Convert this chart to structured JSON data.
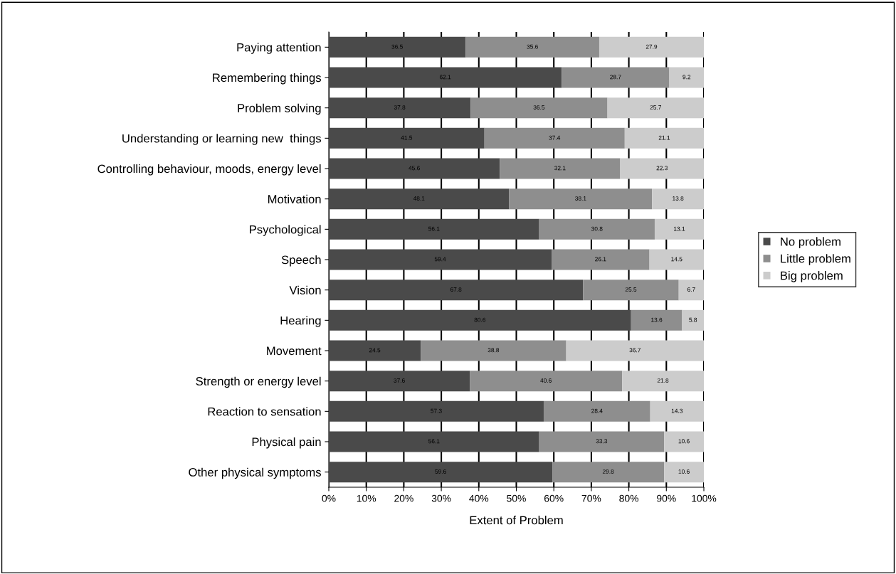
{
  "chart_data": {
    "type": "bar",
    "orientation": "horizontal",
    "stacked": true,
    "xlabel": "Extent of Problem",
    "categories": [
      "Paying attention",
      "Remembering things",
      "Problem solving",
      "Understanding or learning new  things",
      "Controlling behaviour, moods, energy level",
      "Motivation",
      "Psychological",
      "Speech",
      "Vision",
      "Hearing",
      "Movement",
      "Strength or energy level",
      "Reaction to sensation",
      "Physical pain",
      "Other physical symptoms"
    ],
    "series": [
      {
        "name": "No problem",
        "color": "#4a4a4a",
        "values": [
          36.5,
          62.1,
          37.8,
          41.5,
          45.6,
          48.1,
          56.1,
          59.4,
          67.8,
          80.6,
          24.5,
          37.6,
          57.3,
          56.1,
          59.6
        ]
      },
      {
        "name": "Little problem",
        "color": "#8e8e8e",
        "values": [
          35.6,
          28.7,
          36.5,
          37.4,
          32.1,
          38.1,
          30.8,
          26.1,
          25.5,
          13.6,
          38.8,
          40.6,
          28.4,
          33.3,
          29.8
        ]
      },
      {
        "name": "Big problem",
        "color": "#cccccc",
        "values": [
          27.9,
          9.2,
          25.7,
          21.1,
          22.3,
          13.8,
          13.1,
          14.5,
          6.7,
          5.8,
          36.7,
          21.8,
          14.3,
          10.6,
          10.6
        ]
      }
    ],
    "xlim": [
      0,
      100
    ],
    "xticks": [
      {
        "value": 0,
        "label": "0%"
      },
      {
        "value": 10,
        "label": "10%"
      },
      {
        "value": 20,
        "label": "20%"
      },
      {
        "value": 30,
        "label": "30%"
      },
      {
        "value": 40,
        "label": "40%"
      },
      {
        "value": 50,
        "label": "50%"
      },
      {
        "value": 60,
        "label": "60%"
      },
      {
        "value": 70,
        "label": "70%"
      },
      {
        "value": 80,
        "label": "80%"
      },
      {
        "value": 90,
        "label": "90%"
      },
      {
        "value": 100,
        "label": "100%"
      }
    ],
    "grid": "x",
    "legend": "right",
    "data_labels": true
  }
}
